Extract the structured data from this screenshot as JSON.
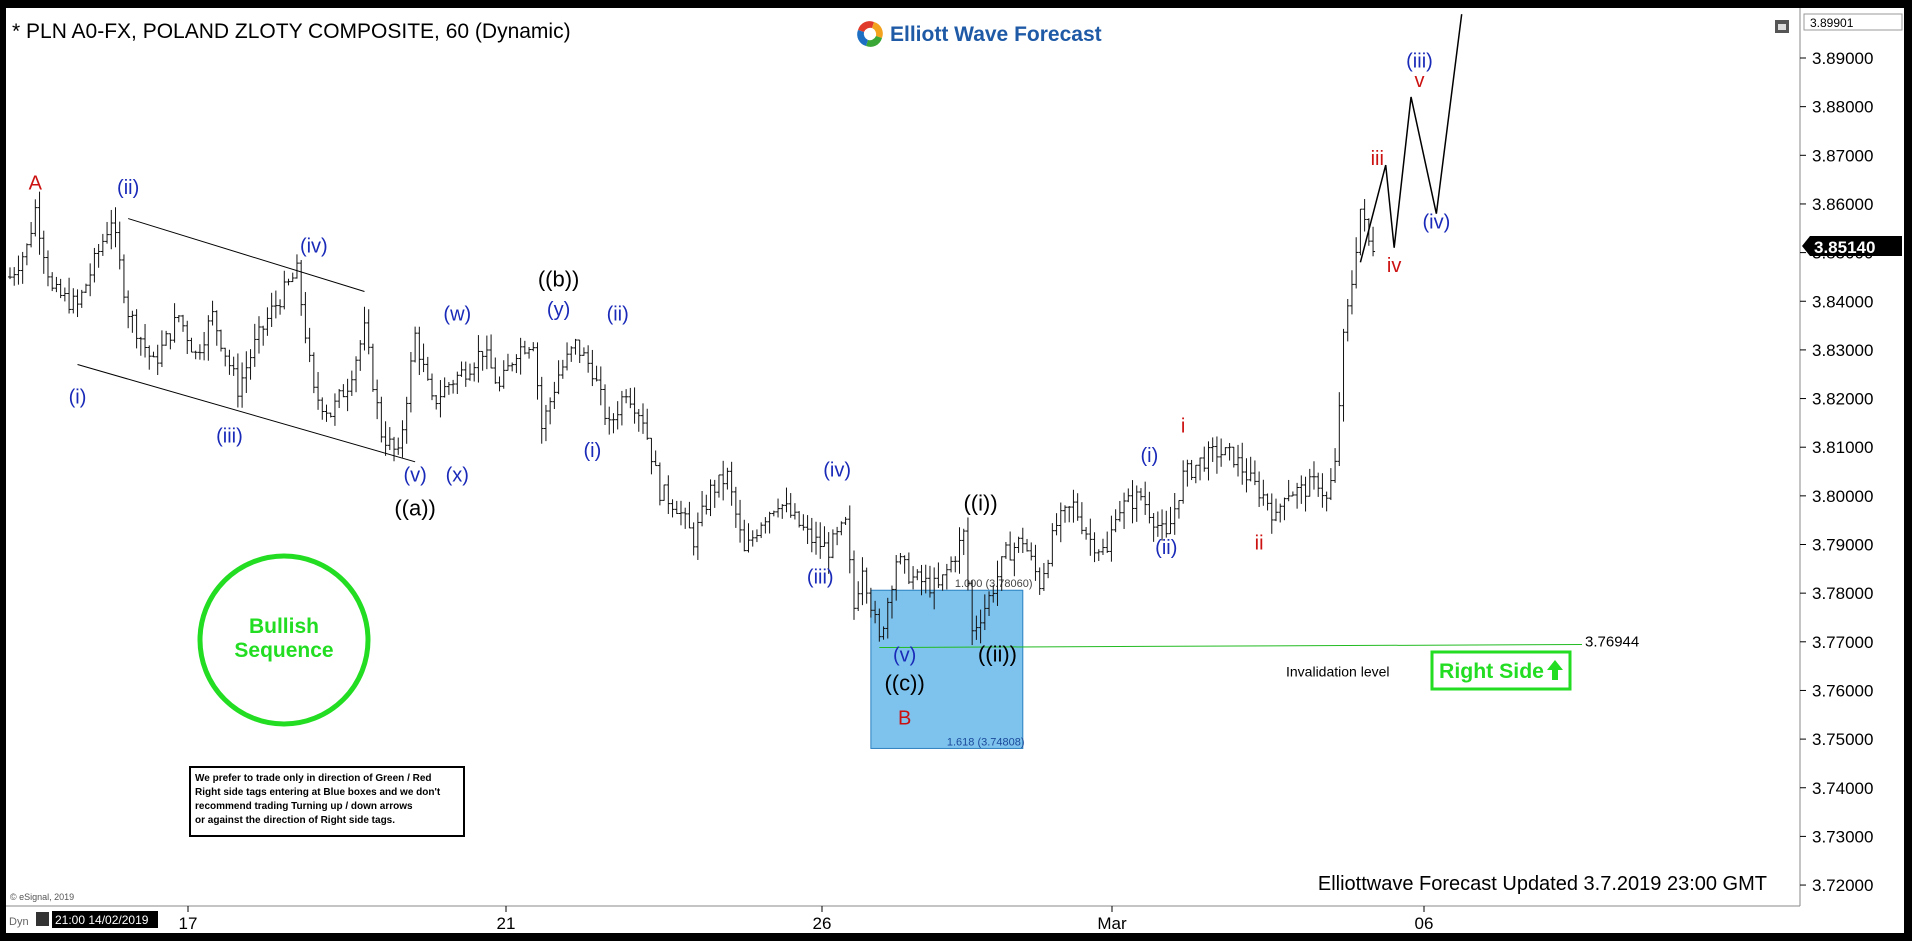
{
  "header": {
    "title": "* PLN A0-FX, POLAND ZLOTY COMPOSITE, 60 (Dynamic)",
    "logo_text": "Elliott Wave Forecast"
  },
  "footer": {
    "updated": "Elliottwave Forecast Updated 3.7.2019 23:00 GMT",
    "copyright": "© eSignal, 2019",
    "timestamp": "21:00 14/02/2019",
    "dyn_label": "Dyn"
  },
  "price_tag": {
    "top": "3.89901",
    "current": "3.85140"
  },
  "callouts": {
    "bullish": [
      "Bullish",
      "Sequence"
    ],
    "right_side": "Right Side",
    "disclaimer": [
      "We prefer to trade only in direction of Green / Red",
      "Right side tags entering at Blue boxes and we don't",
      "recommend trading Turning up / down arrows",
      "or against the direction of Right side tags."
    ],
    "invalidation_label": "Invalidation level",
    "invalidation_value": "3.76944",
    "box_top_label": "1.000 (3.78060)",
    "box_bottom_label": "1.618 (3.74808)"
  },
  "colors": {
    "background": "#ffffff",
    "wave_blue": "#1a2ab8",
    "wave_red": "#cc1111",
    "wave_black": "#000000",
    "green": "#22dd22",
    "box_fill": "#7ec3ee",
    "box_stroke": "#2a7fc0",
    "bars": "#111111"
  },
  "chart_data": {
    "type": "ohlc",
    "title": "* PLN A0-FX, POLAND ZLOTY COMPOSITE, 60 (Dynamic)",
    "x_tick_labels": [
      "17",
      "21",
      "26",
      "Mar",
      "06"
    ],
    "y_tick_labels": [
      "3.89000",
      "3.88000",
      "3.87000",
      "3.86000",
      "3.85000",
      "3.84000",
      "3.83000",
      "3.82000",
      "3.81000",
      "3.80000",
      "3.79000",
      "3.78000",
      "3.77000",
      "3.76000",
      "3.75000",
      "3.74000",
      "3.73000",
      "3.72000"
    ],
    "ylim": [
      3.715,
      3.899
    ],
    "grid": false,
    "series": [
      {
        "values": [
          [
            0,
            3.845
          ],
          [
            2,
            3.851
          ],
          [
            3,
            3.859
          ],
          [
            5,
            3.842
          ],
          [
            8,
            3.839
          ],
          [
            10,
            3.848
          ],
          [
            12,
            3.857
          ],
          [
            14,
            3.838
          ],
          [
            17,
            3.827
          ],
          [
            20,
            3.837
          ],
          [
            22,
            3.829
          ],
          [
            24,
            3.837
          ],
          [
            27,
            3.822
          ],
          [
            29,
            3.831
          ],
          [
            31,
            3.838
          ],
          [
            34,
            3.846
          ],
          [
            36,
            3.821
          ],
          [
            38,
            3.817
          ],
          [
            40,
            3.823
          ],
          [
            42,
            3.834
          ],
          [
            44,
            3.813
          ],
          [
            46,
            3.808
          ],
          [
            48,
            3.833
          ],
          [
            50,
            3.819
          ],
          [
            52,
            3.823
          ],
          [
            54,
            3.826
          ],
          [
            56,
            3.83
          ],
          [
            58,
            3.822
          ],
          [
            60,
            3.83
          ],
          [
            62,
            3.832
          ],
          [
            63,
            3.814
          ],
          [
            65,
            3.825
          ],
          [
            67,
            3.831
          ],
          [
            69,
            3.826
          ],
          [
            71,
            3.814
          ],
          [
            73,
            3.822
          ],
          [
            75,
            3.816
          ],
          [
            77,
            3.801
          ],
          [
            79,
            3.798
          ],
          [
            81,
            3.791
          ],
          [
            83,
            3.801
          ],
          [
            85,
            3.804
          ],
          [
            87,
            3.788
          ],
          [
            89,
            3.795
          ],
          [
            91,
            3.799
          ],
          [
            93,
            3.795
          ],
          [
            95,
            3.791
          ],
          [
            97,
            3.789
          ],
          [
            99,
            3.794
          ],
          [
            100,
            3.777
          ],
          [
            101,
            3.786
          ],
          [
            103,
            3.77
          ],
          [
            105,
            3.787
          ],
          [
            107,
            3.783
          ],
          [
            110,
            3.781
          ],
          [
            112,
            3.788
          ],
          [
            113,
            3.792
          ],
          [
            114,
            3.772
          ],
          [
            116,
            3.779
          ],
          [
            118,
            3.788
          ],
          [
            120,
            3.791
          ],
          [
            122,
            3.782
          ],
          [
            124,
            3.794
          ],
          [
            126,
            3.798
          ],
          [
            128,
            3.791
          ],
          [
            130,
            3.788
          ],
          [
            131,
            3.797
          ],
          [
            132,
            3.798
          ],
          [
            134,
            3.8
          ],
          [
            136,
            3.794
          ],
          [
            137,
            3.791
          ],
          [
            139,
            3.804
          ],
          [
            141,
            3.807
          ],
          [
            143,
            3.809
          ],
          [
            145,
            3.808
          ],
          [
            147,
            3.803
          ],
          [
            149,
            3.799
          ],
          [
            150,
            3.795
          ],
          [
            151,
            3.801
          ],
          [
            153,
            3.801
          ],
          [
            155,
            3.803
          ],
          [
            156,
            3.799
          ],
          [
            157,
            3.806
          ],
          [
            158,
            3.832
          ],
          [
            159,
            3.844
          ],
          [
            160,
            3.859
          ],
          [
            161,
            3.852
          ],
          [
            162,
            3.851
          ]
        ]
      }
    ],
    "annotations": [
      {
        "text": "A",
        "color": "red",
        "x": 3,
        "y": 3.863
      },
      {
        "text": "(ii)",
        "color": "blue",
        "x": 14,
        "y": 3.862
      },
      {
        "text": "(iv)",
        "color": "blue",
        "x": 36,
        "y": 3.85
      },
      {
        "text": "(i)",
        "color": "blue",
        "x": 8,
        "y": 3.819
      },
      {
        "text": "(iii)",
        "color": "blue",
        "x": 26,
        "y": 3.811
      },
      {
        "text": "(v)",
        "color": "blue",
        "x": 48,
        "y": 3.803
      },
      {
        "text": "((a))",
        "color": "black",
        "x": 48,
        "y": 3.796
      },
      {
        "text": "(w)",
        "color": "blue",
        "x": 53,
        "y": 3.836
      },
      {
        "text": "(x)",
        "color": "blue",
        "x": 53,
        "y": 3.803
      },
      {
        "text": "((b))",
        "color": "black",
        "x": 65,
        "y": 3.843
      },
      {
        "text": "(y)",
        "color": "blue",
        "x": 65,
        "y": 3.837
      },
      {
        "text": "(ii)",
        "color": "blue",
        "x": 72,
        "y": 3.836
      },
      {
        "text": "(i)",
        "color": "blue",
        "x": 69,
        "y": 3.808
      },
      {
        "text": "(iv)",
        "color": "blue",
        "x": 98,
        "y": 3.804
      },
      {
        "text": "(iii)",
        "color": "blue",
        "x": 96,
        "y": 3.782
      },
      {
        "text": "(v)",
        "color": "blue",
        "x": 106,
        "y": 3.766
      },
      {
        "text": "((c))",
        "color": "black",
        "x": 106,
        "y": 3.76
      },
      {
        "text": "B",
        "color": "red",
        "x": 106,
        "y": 3.753
      },
      {
        "text": "((i))",
        "color": "black",
        "x": 115,
        "y": 3.797
      },
      {
        "text": "((ii))",
        "color": "black",
        "x": 117,
        "y": 3.766
      },
      {
        "text": "(i)",
        "color": "blue",
        "x": 135,
        "y": 3.807
      },
      {
        "text": "(ii)",
        "color": "blue",
        "x": 137,
        "y": 3.788
      },
      {
        "text": "i",
        "color": "red",
        "x": 139,
        "y": 3.813
      },
      {
        "text": "ii",
        "color": "red",
        "x": 148,
        "y": 3.789
      },
      {
        "text": "iii",
        "color": "red",
        "x": 162,
        "y": 3.868
      },
      {
        "text": "iv",
        "color": "red",
        "x": 164,
        "y": 3.846
      },
      {
        "text": "v",
        "color": "red",
        "x": 167,
        "y": 3.884
      },
      {
        "text": "(iii)",
        "color": "blue",
        "x": 167,
        "y": 3.888
      },
      {
        "text": "(iv)",
        "color": "blue",
        "x": 169,
        "y": 3.855
      }
    ],
    "projection_path": [
      [
        160,
        3.848
      ],
      [
        163,
        3.868
      ],
      [
        164,
        3.851
      ],
      [
        166,
        3.882
      ],
      [
        169,
        3.858
      ],
      [
        172,
        3.899
      ]
    ],
    "channel_lines": [
      {
        "from": [
          14,
          3.857
        ],
        "to": [
          42,
          3.842
        ]
      },
      {
        "from": [
          8,
          3.827
        ],
        "to": [
          48,
          3.807
        ]
      }
    ],
    "invalidation_level": 3.76944,
    "blue_box": {
      "x_from": 102,
      "x_to": 120,
      "y_top": 3.7806,
      "y_bottom": 3.74808
    }
  }
}
